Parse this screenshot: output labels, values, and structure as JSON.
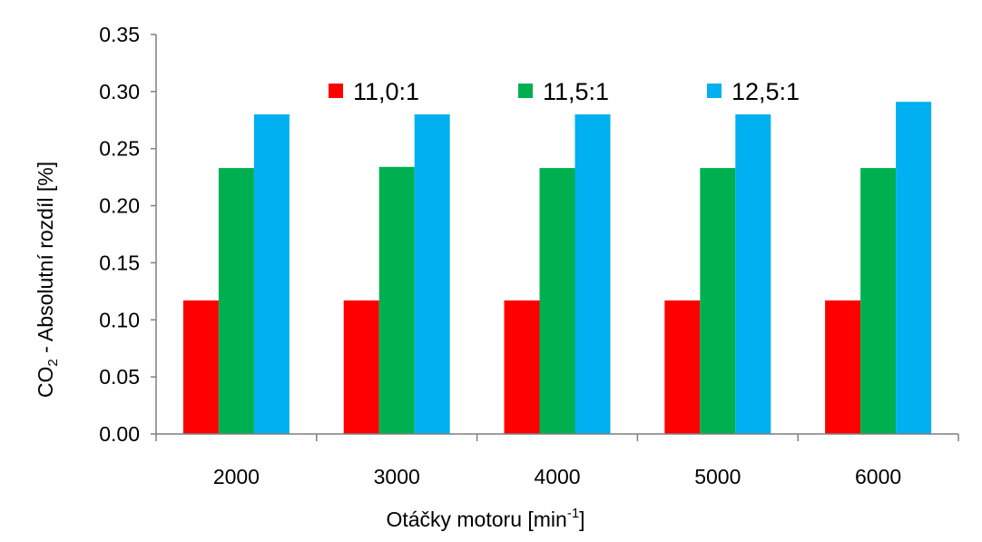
{
  "chart_data": {
    "type": "bar",
    "categories": [
      "2000",
      "3000",
      "4000",
      "5000",
      "6000"
    ],
    "series": [
      {
        "name": "11,0:1",
        "color": "#ff0000",
        "values": [
          0.117,
          0.117,
          0.117,
          0.117,
          0.117
        ]
      },
      {
        "name": "11,5:1",
        "color": "#00b050",
        "values": [
          0.233,
          0.234,
          0.233,
          0.233,
          0.233
        ]
      },
      {
        "name": "12,5:1",
        "color": "#00b0f0",
        "values": [
          0.28,
          0.28,
          0.28,
          0.28,
          0.291
        ]
      }
    ],
    "ylim": [
      0,
      0.35
    ],
    "yticks": [
      "0.00",
      "0.05",
      "0.10",
      "0.15",
      "0.20",
      "0.25",
      "0.30",
      "0.35"
    ],
    "xlabel": {
      "main": "Otáčky motoru [min",
      "sup": "-1",
      "end": "]"
    },
    "ylabel": {
      "main": "CO",
      "sub": "2",
      "end": " - Absolutní rozdíl [%]"
    },
    "grid": false,
    "legend_position": "top"
  }
}
